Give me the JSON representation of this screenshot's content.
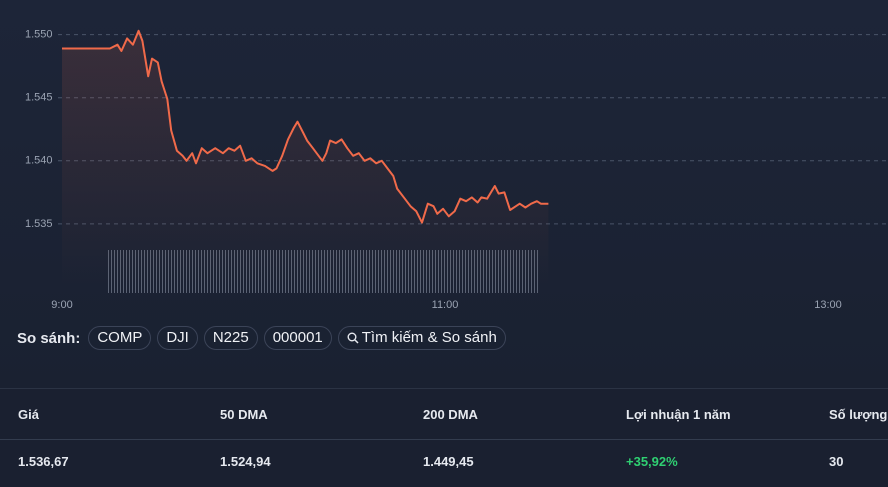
{
  "chart_data": {
    "type": "line",
    "color": "#f06a4a",
    "grid": true,
    "x": [
      9.0,
      9.25,
      9.29,
      9.31,
      9.34,
      9.37,
      9.4,
      9.42,
      9.45,
      9.47,
      9.5,
      9.52,
      9.55,
      9.57,
      9.6,
      9.63,
      9.65,
      9.68,
      9.7,
      9.73,
      9.76,
      9.8,
      9.84,
      9.87,
      9.9,
      9.93,
      9.96,
      9.99,
      10.02,
      10.06,
      10.1,
      10.12,
      10.15,
      10.18,
      10.21,
      10.23,
      10.26,
      10.28,
      10.31,
      10.34,
      10.36,
      10.38,
      10.4,
      10.43,
      10.46,
      10.49,
      10.52,
      10.55,
      10.58,
      10.61,
      10.64,
      10.67,
      10.7,
      10.73,
      10.75,
      10.79,
      10.82,
      10.85,
      10.88,
      10.91,
      10.94,
      10.96,
      10.99,
      11.02,
      11.05,
      11.08,
      11.11,
      11.14,
      11.17,
      11.19,
      11.22,
      11.26,
      11.28,
      11.31,
      11.34,
      11.37,
      11.39,
      11.42,
      11.45,
      11.48,
      11.5,
      11.54
    ],
    "values": [
      1548.9,
      1548.9,
      1549.2,
      1548.7,
      1549.7,
      1549.2,
      1550.3,
      1549.5,
      1546.7,
      1548.1,
      1547.8,
      1546.3,
      1544.9,
      1542.4,
      1540.8,
      1540.4,
      1540.0,
      1540.6,
      1539.8,
      1541.0,
      1540.6,
      1541.0,
      1540.6,
      1541.0,
      1540.8,
      1541.2,
      1540.0,
      1540.2,
      1539.8,
      1539.6,
      1539.2,
      1539.4,
      1540.4,
      1541.7,
      1542.6,
      1543.1,
      1542.2,
      1541.6,
      1541.0,
      1540.4,
      1540.0,
      1540.6,
      1541.6,
      1541.4,
      1541.7,
      1541.0,
      1540.4,
      1540.6,
      1540.0,
      1540.2,
      1539.8,
      1540.0,
      1539.4,
      1538.8,
      1537.8,
      1537.0,
      1536.4,
      1536.0,
      1535.1,
      1536.6,
      1536.4,
      1535.8,
      1536.2,
      1535.6,
      1536.0,
      1537.0,
      1536.8,
      1537.1,
      1536.7,
      1537.1,
      1537.0,
      1538.0,
      1537.4,
      1537.5,
      1536.1,
      1536.4,
      1536.6,
      1536.3,
      1536.6,
      1536.8,
      1536.6,
      1536.6
    ],
    "xlim": [
      9,
      13
    ],
    "xticks": [
      {
        "value": 9,
        "label": "9:00"
      },
      {
        "value": 11,
        "label": "11:00"
      },
      {
        "value": 13,
        "label": "13:00"
      }
    ],
    "ylim": [
      1530,
      1551
    ],
    "yticks": [
      {
        "value": 1535,
        "label": "1.535"
      },
      {
        "value": 1540,
        "label": "1.540"
      },
      {
        "value": 1545,
        "label": "1.545"
      },
      {
        "value": 1550,
        "label": "1.550"
      }
    ]
  },
  "compare": {
    "label": "So sánh:",
    "items": [
      "COMP",
      "DJI",
      "N225",
      "000001"
    ],
    "search": "Tìm kiếm & So sánh"
  },
  "stats": {
    "headers": [
      "Giá",
      "50 DMA",
      "200 DMA",
      "Lợi nhuận 1 năm",
      "Số lượng"
    ],
    "values": [
      "1.536,67",
      "1.524,94",
      "1.449,45",
      "+35,92%",
      "30"
    ]
  }
}
